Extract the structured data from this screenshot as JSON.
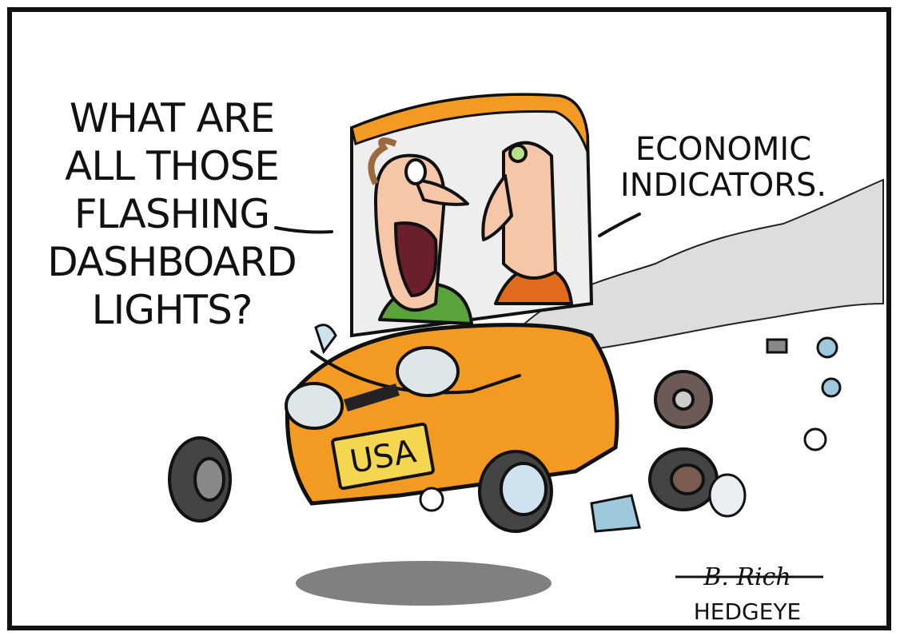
{
  "speech_left": {
    "lines": [
      "WHAT ARE",
      "ALL THOSE",
      "FLASHING",
      "DASHBOARD",
      "LIGHTS?"
    ]
  },
  "speech_right": {
    "lines": [
      "ECONOMIC",
      "INDICATORS."
    ]
  },
  "license_plate": "USA",
  "signature": "B. Rich",
  "credit": "HEDGEYE"
}
